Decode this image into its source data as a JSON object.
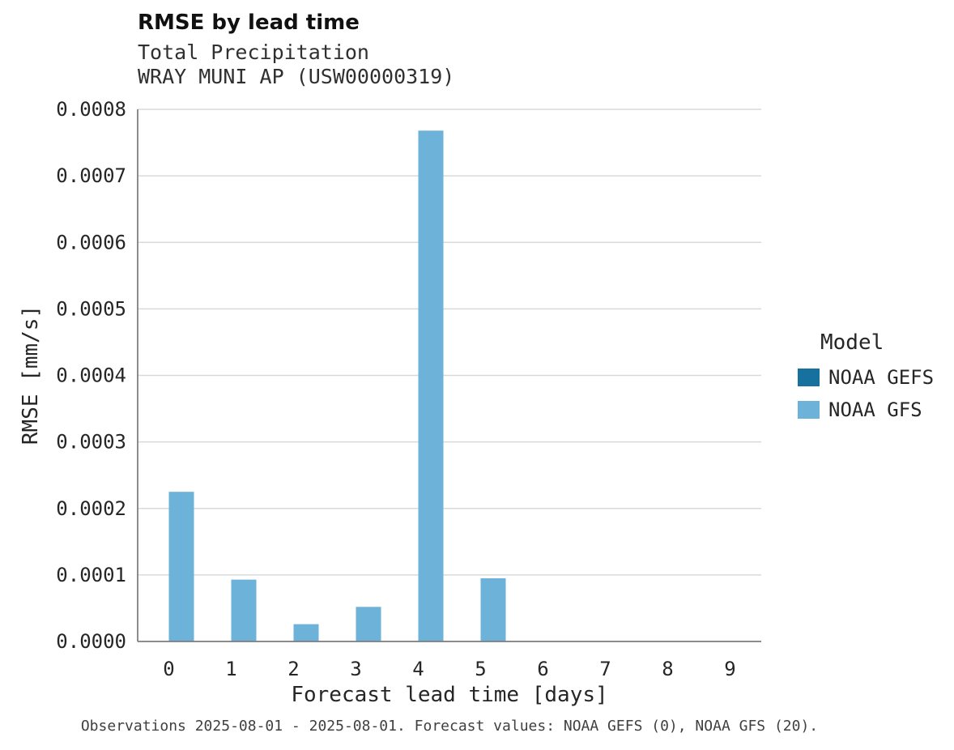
{
  "header": {
    "title": "RMSE by lead time",
    "subtitle_line1": "Total Precipitation",
    "subtitle_line2": "WRAY MUNI AP (USW00000319)"
  },
  "legend": {
    "title": "Model",
    "items": [
      {
        "label": "NOAA GEFS",
        "color": "#17719f"
      },
      {
        "label": "NOAA GFS",
        "color": "#6db2d9"
      }
    ]
  },
  "footer": {
    "caption": "Observations 2025-08-01 - 2025-08-01. Forecast values: NOAA GEFS (0), NOAA GFS (20)."
  },
  "chart_data": {
    "type": "bar",
    "title": "RMSE by lead time",
    "subtitle": "Total Precipitation",
    "station": "WRAY MUNI AP (USW00000319)",
    "xlabel": "Forecast lead time [days]",
    "ylabel": "RMSE [mm/s]",
    "categories": [
      "0",
      "1",
      "2",
      "3",
      "4",
      "5",
      "6",
      "7",
      "8",
      "9"
    ],
    "series": [
      {
        "name": "NOAA GEFS",
        "color": "#17719f",
        "values": [
          0,
          0,
          0,
          0,
          0,
          0,
          0,
          0,
          0,
          0
        ]
      },
      {
        "name": "NOAA GFS",
        "color": "#6db2d9",
        "values": [
          0.000225,
          9.3e-05,
          2.6e-05,
          5.2e-05,
          0.000768,
          9.5e-05,
          0,
          0,
          0,
          0
        ]
      }
    ],
    "ylim": [
      0,
      0.0008
    ],
    "ytick_step": 0.0001,
    "ytick_decimals": 4,
    "grid": true,
    "grid_color": "#d9d9d9",
    "axis_color": "#7f7f7f",
    "legend_position": "right"
  }
}
